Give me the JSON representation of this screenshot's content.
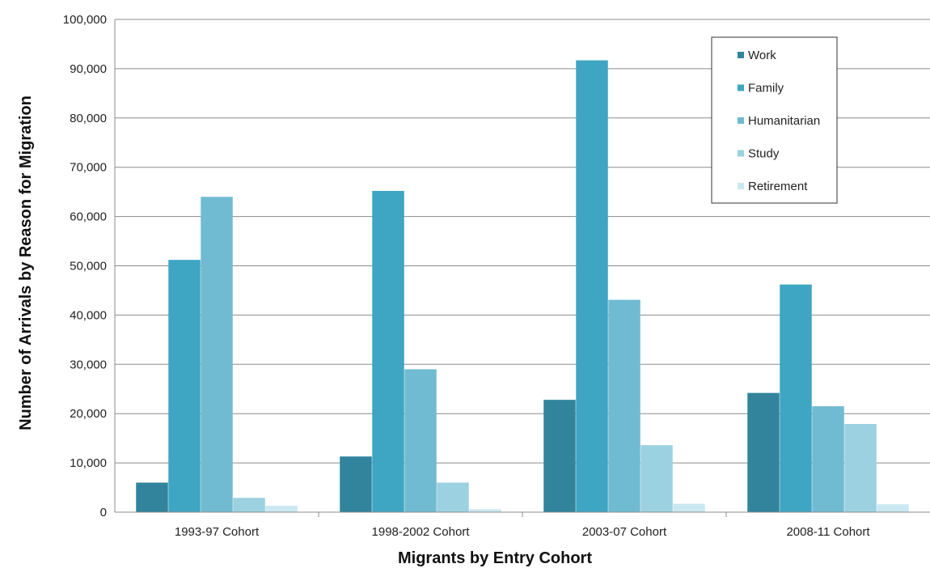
{
  "chart_data": {
    "type": "bar",
    "title": "",
    "xlabel": "Migrants by Entry Cohort",
    "ylabel": "Number of Arrivals by Reason for Migration",
    "ylim": [
      0,
      100000
    ],
    "yticks": [
      0,
      10000,
      20000,
      30000,
      40000,
      50000,
      60000,
      70000,
      80000,
      90000,
      100000
    ],
    "ytick_labels": [
      "0",
      "10,000",
      "20,000",
      "30,000",
      "40,000",
      "50,000",
      "60,000",
      "70,000",
      "80,000",
      "90,000",
      "100,000"
    ],
    "grid": "horizontal",
    "legend_position": "top-right",
    "categories": [
      "1993-97 Cohort",
      "1998-2002 Cohort",
      "2003-07 Cohort",
      "2008-11 Cohort"
    ],
    "series": [
      {
        "name": "Work",
        "color": "#31849b",
        "values": [
          6000,
          11300,
          22800,
          24200
        ]
      },
      {
        "name": "Family",
        "color": "#3ea5c3",
        "values": [
          51200,
          65200,
          91700,
          46200
        ]
      },
      {
        "name": "Humanitarian",
        "color": "#71bbd2",
        "values": [
          64000,
          29000,
          43100,
          21500
        ]
      },
      {
        "name": "Study",
        "color": "#9bd1e1",
        "values": [
          2900,
          6000,
          13600,
          17900
        ]
      },
      {
        "name": "Retirement",
        "color": "#cae8f1",
        "values": [
          1300,
          600,
          1700,
          1600
        ]
      }
    ]
  }
}
